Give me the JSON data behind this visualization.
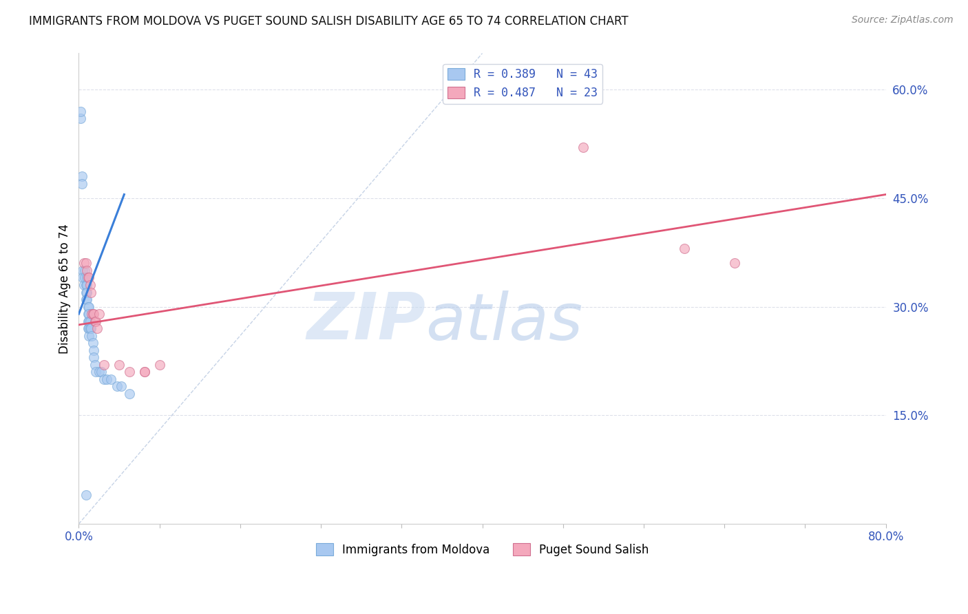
{
  "title": "IMMIGRANTS FROM MOLDOVA VS PUGET SOUND SALISH DISABILITY AGE 65 TO 74 CORRELATION CHART",
  "source": "Source: ZipAtlas.com",
  "ylabel": "Disability Age 65 to 74",
  "xlim": [
    0.0,
    0.8
  ],
  "ylim": [
    0.0,
    0.65
  ],
  "yticks_right": [
    0.15,
    0.3,
    0.45,
    0.6
  ],
  "ytick_right_labels": [
    "15.0%",
    "30.0%",
    "45.0%",
    "60.0%"
  ],
  "blue_color": "#a8c8f0",
  "pink_color": "#f4a8bc",
  "blue_line_color": "#3a7fd9",
  "pink_line_color": "#e05575",
  "scatter_alpha": 0.65,
  "scatter_size": 100,
  "blue_points_x": [
    0.002,
    0.002,
    0.003,
    0.003,
    0.004,
    0.004,
    0.005,
    0.006,
    0.006,
    0.007,
    0.007,
    0.007,
    0.008,
    0.008,
    0.008,
    0.008,
    0.009,
    0.009,
    0.009,
    0.009,
    0.01,
    0.01,
    0.01,
    0.01,
    0.01,
    0.011,
    0.011,
    0.012,
    0.013,
    0.014,
    0.015,
    0.015,
    0.016,
    0.017,
    0.02,
    0.022,
    0.025,
    0.028,
    0.032,
    0.038,
    0.042,
    0.05,
    0.007
  ],
  "blue_points_y": [
    0.56,
    0.57,
    0.48,
    0.47,
    0.35,
    0.34,
    0.33,
    0.35,
    0.34,
    0.33,
    0.32,
    0.31,
    0.34,
    0.33,
    0.32,
    0.31,
    0.3,
    0.29,
    0.28,
    0.27,
    0.3,
    0.29,
    0.28,
    0.27,
    0.26,
    0.28,
    0.27,
    0.27,
    0.26,
    0.25,
    0.24,
    0.23,
    0.22,
    0.21,
    0.21,
    0.21,
    0.2,
    0.2,
    0.2,
    0.19,
    0.19,
    0.18,
    0.04
  ],
  "pink_points_x": [
    0.005,
    0.007,
    0.008,
    0.009,
    0.01,
    0.011,
    0.012,
    0.013,
    0.014,
    0.015,
    0.016,
    0.017,
    0.018,
    0.02,
    0.025,
    0.04,
    0.05,
    0.065,
    0.065,
    0.08,
    0.5,
    0.6,
    0.65
  ],
  "pink_points_y": [
    0.36,
    0.36,
    0.35,
    0.34,
    0.34,
    0.33,
    0.32,
    0.29,
    0.29,
    0.29,
    0.28,
    0.28,
    0.27,
    0.29,
    0.22,
    0.22,
    0.21,
    0.21,
    0.21,
    0.22,
    0.52,
    0.38,
    0.36
  ],
  "blue_line_x": [
    0.0,
    0.045
  ],
  "blue_line_y": [
    0.29,
    0.455
  ],
  "pink_line_x": [
    0.0,
    0.8
  ],
  "pink_line_y": [
    0.275,
    0.455
  ],
  "ref_line_x": [
    0.0,
    0.4
  ],
  "ref_line_y": [
    0.0,
    0.65
  ],
  "watermark": "ZIPatlas",
  "watermark_color": "#d0e4f8",
  "legend_label_blue": "R = 0.389   N = 43",
  "legend_label_pink": "R = 0.487   N = 23",
  "legend_label_blue_bottom": "Immigrants from Moldova",
  "legend_label_pink_bottom": "Puget Sound Salish"
}
